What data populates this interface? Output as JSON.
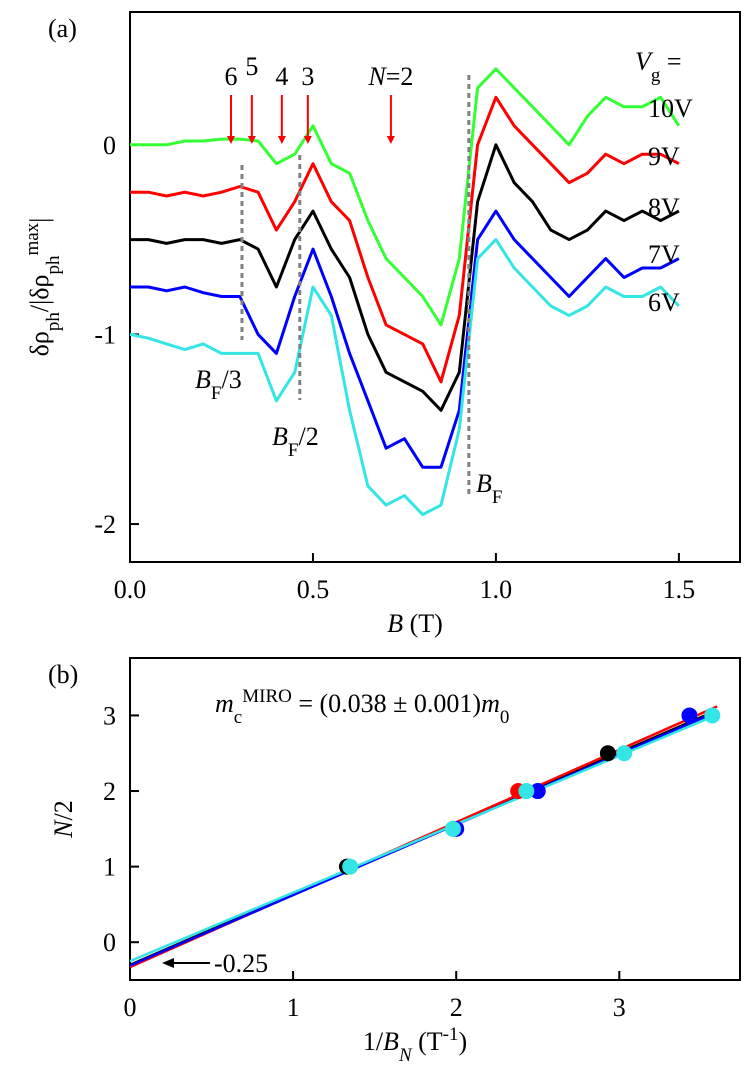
{
  "chart_data": [
    {
      "type": "line",
      "panel_label": "(a)",
      "x": [
        0,
        0.05,
        0.1,
        0.15,
        0.2,
        0.25,
        0.3,
        0.35,
        0.4,
        0.45,
        0.5,
        0.55,
        0.6,
        0.65,
        0.7,
        0.75,
        0.8,
        0.85,
        0.9,
        0.95,
        1.0,
        1.05,
        1.1,
        1.15,
        1.2,
        1.25,
        1.3,
        1.35,
        1.4,
        1.45,
        1.5
      ],
      "series": [
        {
          "name": "10V",
          "color": "#33ff33",
          "values": [
            0,
            0,
            0,
            0.02,
            0.02,
            0.03,
            0.03,
            0.02,
            -0.1,
            -0.05,
            0.1,
            -0.1,
            -0.15,
            -0.4,
            -0.6,
            -0.7,
            -0.8,
            -0.95,
            -0.6,
            0.3,
            0.4,
            0.3,
            0.2,
            0.1,
            0.0,
            0.15,
            0.25,
            0.2,
            0.2,
            0.25,
            0.1
          ]
        },
        {
          "name": "9V",
          "color": "#ff0000",
          "values": [
            -0.25,
            -0.25,
            -0.27,
            -0.25,
            -0.27,
            -0.25,
            -0.22,
            -0.25,
            -0.45,
            -0.3,
            -0.1,
            -0.3,
            -0.4,
            -0.7,
            -0.95,
            -1.0,
            -1.05,
            -1.25,
            -0.9,
            0.0,
            0.25,
            0.1,
            0.0,
            -0.1,
            -0.2,
            -0.15,
            -0.05,
            -0.1,
            -0.05,
            -0.05,
            -0.1
          ]
        },
        {
          "name": "8V",
          "color": "#000000",
          "values": [
            -0.5,
            -0.5,
            -0.52,
            -0.5,
            -0.5,
            -0.52,
            -0.5,
            -0.55,
            -0.75,
            -0.5,
            -0.35,
            -0.55,
            -0.7,
            -1.0,
            -1.2,
            -1.25,
            -1.3,
            -1.4,
            -1.2,
            -0.3,
            0.0,
            -0.2,
            -0.3,
            -0.45,
            -0.5,
            -0.45,
            -0.35,
            -0.4,
            -0.35,
            -0.4,
            -0.35
          ]
        },
        {
          "name": "7V",
          "color": "#0000ff",
          "values": [
            -0.75,
            -0.75,
            -0.77,
            -0.75,
            -0.78,
            -0.8,
            -0.8,
            -1.0,
            -1.1,
            -0.8,
            -0.55,
            -0.8,
            -1.1,
            -1.35,
            -1.6,
            -1.55,
            -1.7,
            -1.7,
            -1.4,
            -0.5,
            -0.35,
            -0.5,
            -0.6,
            -0.7,
            -0.8,
            -0.7,
            -0.6,
            -0.7,
            -0.65,
            -0.65,
            -0.6
          ]
        },
        {
          "name": "6V",
          "color": "#33e5e5",
          "values": [
            -1.0,
            -1.02,
            -1.05,
            -1.08,
            -1.05,
            -1.1,
            -1.1,
            -1.1,
            -1.35,
            -1.2,
            -0.75,
            -0.9,
            -1.4,
            -1.8,
            -1.9,
            -1.85,
            -1.95,
            -1.9,
            -1.5,
            -0.6,
            -0.5,
            -0.65,
            -0.75,
            -0.85,
            -0.9,
            -0.85,
            -0.75,
            -0.8,
            -0.8,
            -0.75,
            -0.85
          ]
        }
      ],
      "legend_title": [
        {
          "t": "V",
          "s": "i"
        },
        {
          "t": "g",
          "s": "sub"
        },
        {
          "t": " ="
        }
      ],
      "xlim": [
        0,
        1.667
      ],
      "xticks": [
        {
          "value": 0,
          "label": "0.0"
        },
        0.5,
        {
          "value": 1,
          "label": "1.0"
        },
        1.5
      ],
      "ylim": [
        -2.2,
        0.7
      ],
      "yticks": [
        0,
        -1,
        -2
      ],
      "x_label": [
        {
          "t": "B",
          "s": "i"
        },
        {
          "t": " (T)"
        }
      ],
      "y_label": [
        {
          "t": "δρ"
        },
        {
          "t": "ph",
          "s": "sub"
        },
        {
          "t": "/|δρ"
        },
        {
          "t": "ph",
          "s": "sub"
        },
        {
          "t": "max",
          "s": "sup"
        },
        {
          "t": "|"
        }
      ],
      "arrows": [
        {
          "x": 0.276,
          "label": [
            {
              "t": "6"
            }
          ]
        },
        {
          "x": 0.333,
          "label": [
            {
              "t": "5"
            }
          ]
        },
        {
          "x": 0.415,
          "label": [
            {
              "t": "4"
            }
          ]
        },
        {
          "x": 0.486,
          "label": [
            {
              "t": "3"
            }
          ]
        },
        {
          "x": 0.713,
          "label": [
            {
              "t": "N",
              "s": "i"
            },
            {
              "t": "=2"
            }
          ]
        }
      ],
      "markers": [
        {
          "x": 0.306,
          "label": [
            {
              "t": "B",
              "s": "i"
            },
            {
              "t": "F",
              "s": "sub"
            },
            {
              "t": "/3"
            }
          ]
        },
        {
          "x": 0.464,
          "label": [
            {
              "t": "B",
              "s": "i"
            },
            {
              "t": "F",
              "s": "sub"
            },
            {
              "t": "/2"
            }
          ]
        },
        {
          "x": 0.926,
          "label": [
            {
              "t": "B",
              "s": "i"
            },
            {
              "t": "F",
              "s": "sub"
            }
          ]
        }
      ]
    },
    {
      "type": "scatter",
      "panel_label": "(b)",
      "series": [
        {
          "color": "#000000",
          "x": [
            1.33,
            2.93
          ],
          "values": [
            1,
            2.5
          ]
        },
        {
          "color": "#ff0000",
          "x": [
            2.38
          ],
          "values": [
            2
          ]
        },
        {
          "color": "#0000ff",
          "x": [
            2.0,
            2.5,
            3.43
          ],
          "values": [
            1.5,
            2,
            3
          ]
        },
        {
          "color": "#33e5e5",
          "x": [
            1.35,
            1.98,
            2.43,
            3.03,
            3.57
          ],
          "values": [
            1,
            1.5,
            2,
            2.5,
            3
          ]
        }
      ],
      "fit_lines": [
        {
          "color": "#000000",
          "x": [
            0,
            3.6
          ],
          "values": [
            -0.3,
            3.07
          ]
        },
        {
          "color": "#ff0000",
          "x": [
            0,
            3.6
          ],
          "values": [
            -0.33,
            3.12
          ]
        },
        {
          "color": "#0000ff",
          "x": [
            0,
            3.6
          ],
          "values": [
            -0.31,
            3.05
          ]
        },
        {
          "color": "#33e5e5",
          "x": [
            0,
            3.6
          ],
          "values": [
            -0.25,
            3.01
          ]
        }
      ],
      "xlim": [
        0,
        3.74
      ],
      "xticks": [
        0,
        1,
        2,
        3
      ],
      "ylim": [
        -0.5,
        3.76
      ],
      "yticks": [
        0,
        1,
        2,
        3
      ],
      "x_label": [
        {
          "t": "1/"
        },
        {
          "t": "B",
          "s": "i"
        },
        {
          "t": "N",
          "s": "isub"
        },
        {
          "t": " (T"
        },
        {
          "t": "-1",
          "s": "sup"
        },
        {
          "t": ")"
        }
      ],
      "y_label": [
        {
          "t": "N",
          "s": "i"
        },
        {
          "t": "/2"
        }
      ],
      "equation": [
        {
          "t": "m",
          "s": "i"
        },
        {
          "t": "c",
          "s": "sub"
        },
        {
          "t": "MIRO",
          "s": "sup"
        },
        {
          "t": " = (0.038 ± 0.001)"
        },
        {
          "t": "m",
          "s": "i"
        },
        {
          "t": "0",
          "s": "sub"
        }
      ],
      "intercept_label": "-0.25"
    }
  ]
}
